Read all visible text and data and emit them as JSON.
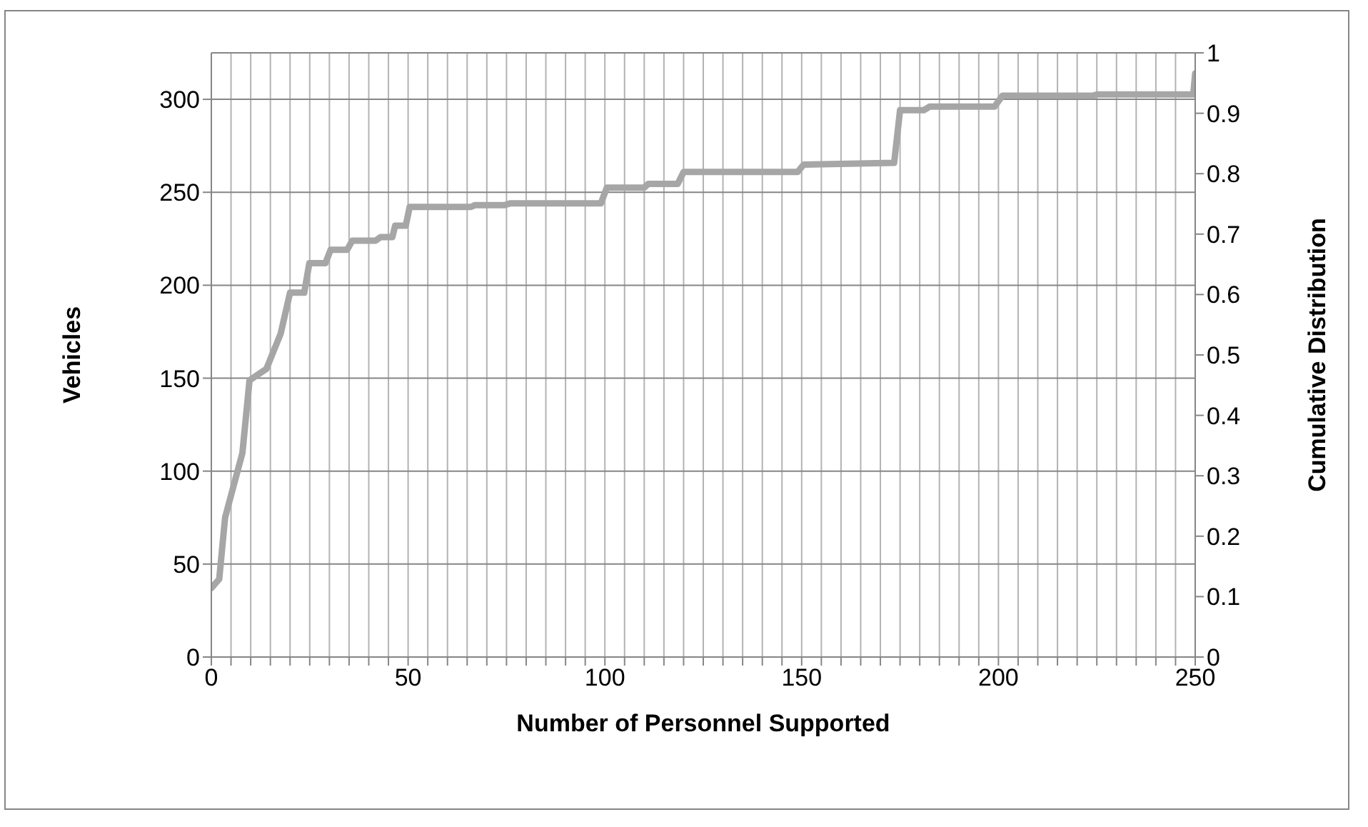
{
  "chart_data": {
    "type": "line",
    "xlabel": "Number of Personnel Supported",
    "ylabel": "Vehicles",
    "y2label": "Cumulative Distribution",
    "xlim": [
      0,
      250
    ],
    "xticks": [
      0,
      {
        "value": 5,
        "label": null
      },
      {
        "value": 10,
        "label": null
      },
      {
        "value": 15,
        "label": null
      },
      {
        "value": 20,
        "label": null
      },
      {
        "value": 25,
        "label": null
      },
      {
        "value": 30,
        "label": null
      },
      {
        "value": 35,
        "label": null
      },
      {
        "value": 40,
        "label": null
      },
      {
        "value": 45,
        "label": null
      },
      50,
      {
        "value": 55,
        "label": null
      },
      {
        "value": 60,
        "label": null
      },
      {
        "value": 65,
        "label": null
      },
      {
        "value": 70,
        "label": null
      },
      {
        "value": 75,
        "label": null
      },
      {
        "value": 80,
        "label": null
      },
      {
        "value": 85,
        "label": null
      },
      {
        "value": 90,
        "label": null
      },
      {
        "value": 95,
        "label": null
      },
      100,
      {
        "value": 105,
        "label": null
      },
      {
        "value": 110,
        "label": null
      },
      {
        "value": 115,
        "label": null
      },
      {
        "value": 120,
        "label": null
      },
      {
        "value": 125,
        "label": null
      },
      {
        "value": 130,
        "label": null
      },
      {
        "value": 135,
        "label": null
      },
      {
        "value": 140,
        "label": null
      },
      {
        "value": 145,
        "label": null
      },
      150,
      {
        "value": 155,
        "label": null
      },
      {
        "value": 160,
        "label": null
      },
      {
        "value": 165,
        "label": null
      },
      {
        "value": 170,
        "label": null
      },
      {
        "value": 175,
        "label": null
      },
      {
        "value": 180,
        "label": null
      },
      {
        "value": 185,
        "label": null
      },
      {
        "value": 190,
        "label": null
      },
      {
        "value": 195,
        "label": null
      },
      200,
      {
        "value": 205,
        "label": null
      },
      {
        "value": 210,
        "label": null
      },
      {
        "value": 215,
        "label": null
      },
      {
        "value": 220,
        "label": null
      },
      {
        "value": 225,
        "label": null
      },
      {
        "value": 230,
        "label": null
      },
      {
        "value": 235,
        "label": null
      },
      {
        "value": 240,
        "label": null
      },
      {
        "value": 245,
        "label": null
      },
      250
    ],
    "ylim": [
      0,
      325
    ],
    "yticks": [
      0,
      50,
      100,
      150,
      200,
      250,
      300
    ],
    "y2lim": [
      0,
      1
    ],
    "y2ticks": [
      0,
      0.1,
      0.2,
      0.3,
      0.4,
      0.5,
      0.6,
      0.7,
      0.8,
      0.9,
      1
    ],
    "grid": true,
    "legend": false,
    "marker": "none",
    "line_style": "solid",
    "series": [
      {
        "color": "#a6a6a6",
        "axis": "y2",
        "x": [
          0,
          2,
          3.5,
          7.9,
          9.7,
          14,
          17.6,
          20,
          23.6,
          24.9,
          29,
          30.3,
          34.5,
          35.8,
          41.7,
          43,
          46,
          46.7,
          49.4,
          50.4,
          66,
          67,
          74.5,
          76,
          99,
          100.5,
          110,
          111,
          118.5,
          120,
          149,
          150.5,
          173.5,
          175,
          181,
          182.5,
          199,
          201,
          224,
          225,
          249.5,
          250
        ],
        "values": [
          0.114,
          0.129,
          0.231,
          0.338,
          0.458,
          0.477,
          0.535,
          0.603,
          0.603,
          0.652,
          0.652,
          0.674,
          0.674,
          0.689,
          0.689,
          0.695,
          0.695,
          0.714,
          0.714,
          0.745,
          0.745,
          0.748,
          0.748,
          0.751,
          0.751,
          0.777,
          0.777,
          0.783,
          0.783,
          0.803,
          0.803,
          0.815,
          0.818,
          0.905,
          0.905,
          0.911,
          0.911,
          0.929,
          0.929,
          0.931,
          0.931,
          0.966
        ]
      }
    ]
  }
}
